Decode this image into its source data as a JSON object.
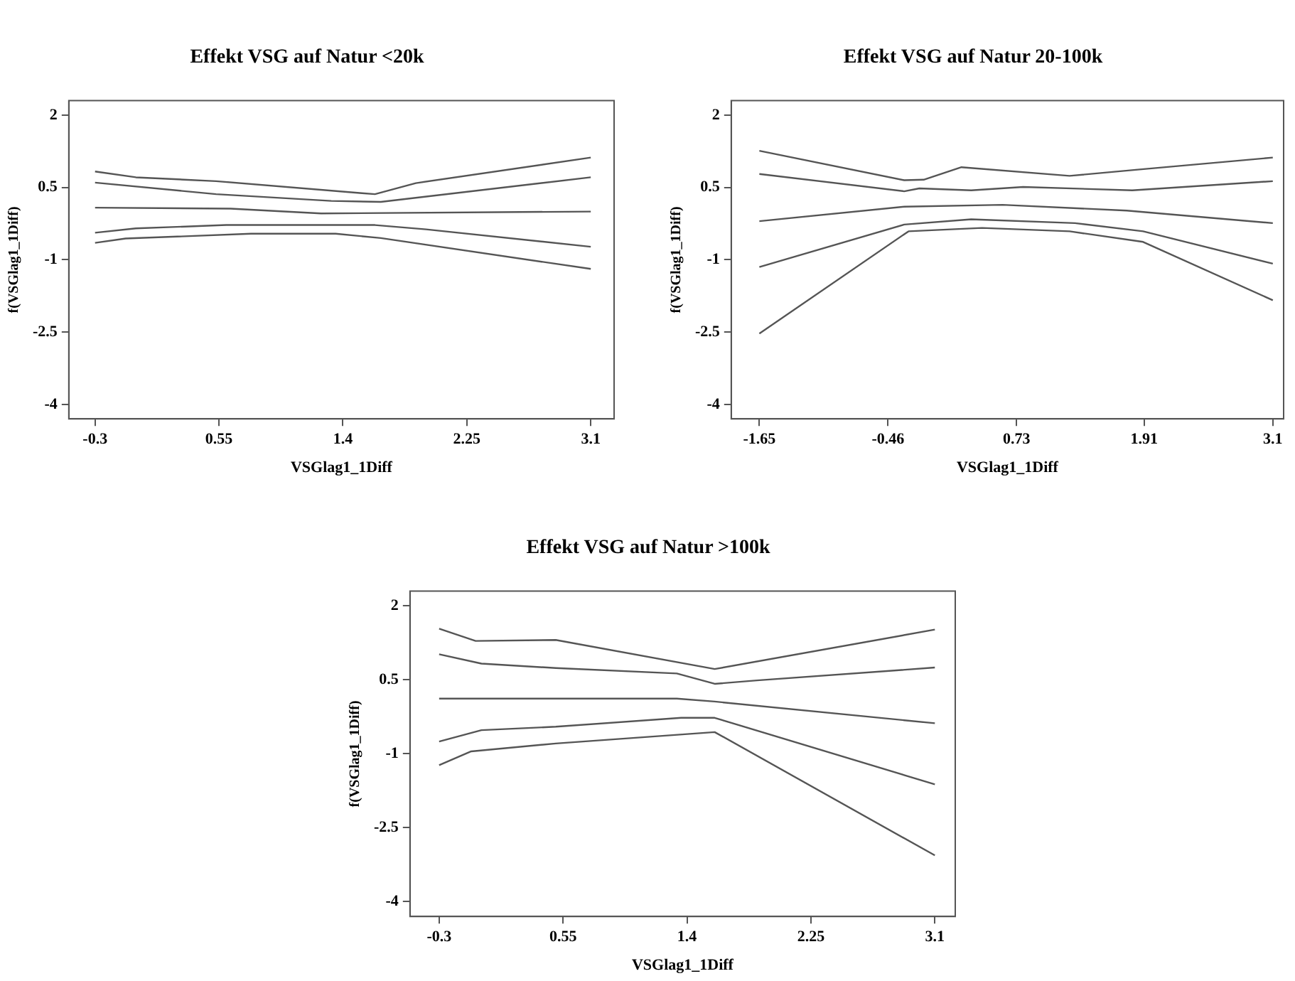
{
  "chart_data": [
    {
      "type": "line",
      "title": "Effekt VSG auf Natur <20k",
      "xlabel": "VSGlag1_1Diff",
      "ylabel": "f(VSGlag1_1Diff)",
      "xlim": [
        -0.48,
        3.26
      ],
      "ylim": [
        -4.3,
        2.3
      ],
      "xticks": [
        -0.3,
        0.55,
        1.4,
        2.25,
        3.1
      ],
      "yticks": [
        -4,
        -2.5,
        -1,
        0.5,
        2
      ],
      "grid": false,
      "legend": false,
      "line_style": "solid",
      "marker": "none",
      "series": [
        {
          "color": "#555555",
          "x": [
            -0.3,
            -0.02,
            0.53,
            1.53,
            1.62,
            1.9,
            3.1
          ],
          "values": [
            0.83,
            0.71,
            0.63,
            0.38,
            0.36,
            0.59,
            1.12
          ]
        },
        {
          "color": "#555555",
          "x": [
            -0.3,
            0.53,
            1.32,
            1.66,
            3.1
          ],
          "values": [
            0.6,
            0.36,
            0.22,
            0.2,
            0.71
          ]
        },
        {
          "color": "#555555",
          "x": [
            -0.3,
            0.63,
            1.25,
            3.1
          ],
          "values": [
            0.08,
            0.06,
            -0.04,
            0.0
          ]
        },
        {
          "color": "#555555",
          "x": [
            -0.3,
            -0.02,
            0.6,
            1.62,
            1.97,
            3.1
          ],
          "values": [
            -0.44,
            -0.35,
            -0.28,
            -0.28,
            -0.37,
            -0.73
          ]
        },
        {
          "color": "#555555",
          "x": [
            -0.3,
            -0.09,
            0.77,
            1.35,
            1.66,
            3.1
          ],
          "values": [
            -0.65,
            -0.56,
            -0.46,
            -0.46,
            -0.55,
            -1.19
          ]
        }
      ]
    },
    {
      "type": "line",
      "title": "Effekt VSG auf Natur 20-100k",
      "xlabel": "VSGlag1_1Diff",
      "ylabel": "f(VSGlag1_1Diff)",
      "xlim": [
        -1.91,
        3.2
      ],
      "ylim": [
        -4.3,
        2.3
      ],
      "xticks": [
        -1.65,
        -0.46,
        0.73,
        1.91,
        3.1
      ],
      "yticks": [
        -4,
        -2.5,
        -1,
        0.5,
        2
      ],
      "grid": false,
      "legend": false,
      "line_style": "solid",
      "marker": "none",
      "series": [
        {
          "color": "#555555",
          "x": [
            -1.65,
            -0.31,
            -0.13,
            0.22,
            1.22,
            1.85,
            3.1
          ],
          "values": [
            1.26,
            0.65,
            0.66,
            0.92,
            0.74,
            0.87,
            1.12
          ]
        },
        {
          "color": "#555555",
          "x": [
            -1.65,
            -0.31,
            -0.17,
            0.31,
            0.79,
            1.8,
            3.1
          ],
          "values": [
            0.78,
            0.42,
            0.48,
            0.44,
            0.51,
            0.44,
            0.63
          ]
        },
        {
          "color": "#555555",
          "x": [
            -1.65,
            -0.31,
            0.6,
            1.75,
            3.1
          ],
          "values": [
            -0.2,
            0.1,
            0.14,
            0.02,
            -0.24
          ]
        },
        {
          "color": "#555555",
          "x": [
            -1.65,
            -0.31,
            0.31,
            1.27,
            1.9,
            3.1
          ],
          "values": [
            -1.15,
            -0.27,
            -0.16,
            -0.24,
            -0.41,
            -1.08
          ]
        },
        {
          "color": "#555555",
          "x": [
            -1.65,
            -0.27,
            0.41,
            1.22,
            1.9,
            3.1
          ],
          "values": [
            -2.53,
            -0.41,
            -0.34,
            -0.41,
            -0.63,
            -1.84
          ]
        }
      ]
    },
    {
      "type": "line",
      "title": "Effekt VSG auf Natur >100k",
      "xlabel": "VSGlag1_1Diff",
      "ylabel": "f(VSGlag1_1Diff)",
      "xlim": [
        -0.5,
        3.24
      ],
      "ylim": [
        -4.3,
        2.3
      ],
      "xticks": [
        -0.3,
        0.55,
        1.4,
        2.25,
        3.1
      ],
      "yticks": [
        -4,
        -2.5,
        -1,
        0.5,
        2
      ],
      "grid": false,
      "legend": false,
      "line_style": "solid",
      "marker": "none",
      "series": [
        {
          "color": "#555555",
          "x": [
            -0.3,
            -0.05,
            0.5,
            1.59,
            3.1
          ],
          "values": [
            1.54,
            1.29,
            1.31,
            0.72,
            1.52
          ]
        },
        {
          "color": "#555555",
          "x": [
            -0.3,
            -0.01,
            0.5,
            1.33,
            1.59,
            1.88,
            3.1
          ],
          "values": [
            1.02,
            0.83,
            0.74,
            0.63,
            0.42,
            0.49,
            0.75
          ]
        },
        {
          "color": "#555555",
          "x": [
            -0.3,
            1.33,
            1.59,
            3.1
          ],
          "values": [
            0.12,
            0.12,
            0.06,
            -0.38
          ]
        },
        {
          "color": "#555555",
          "x": [
            -0.3,
            -0.01,
            0.5,
            1.36,
            1.59,
            3.1
          ],
          "values": [
            -0.75,
            -0.52,
            -0.45,
            -0.27,
            -0.27,
            -1.62
          ]
        },
        {
          "color": "#555555",
          "x": [
            -0.3,
            -0.08,
            0.5,
            1.59,
            3.1
          ],
          "values": [
            -1.23,
            -0.95,
            -0.79,
            -0.56,
            -3.06
          ]
        }
      ]
    }
  ]
}
